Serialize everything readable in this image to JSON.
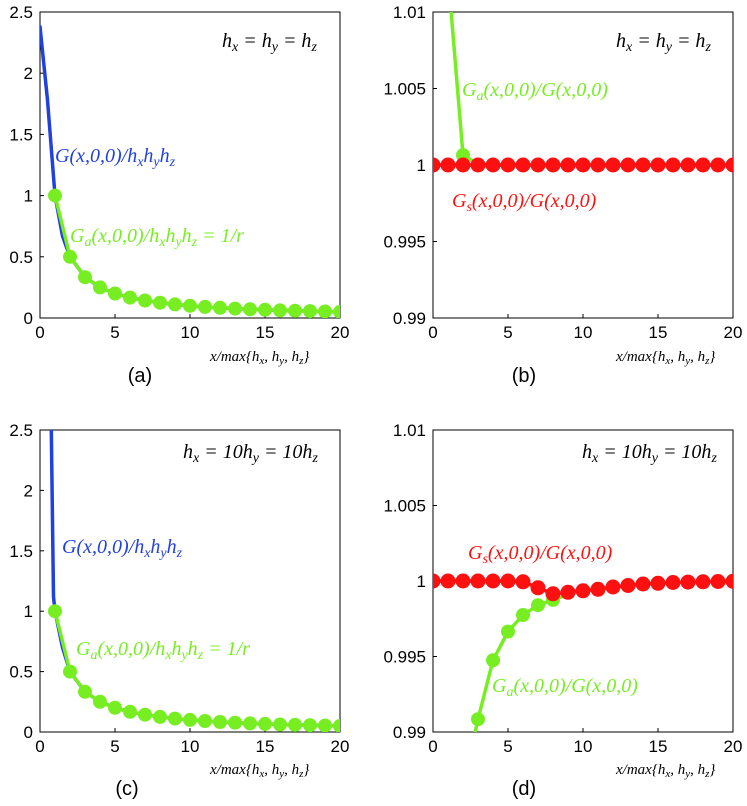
{
  "chart_data": [
    {
      "id": "a",
      "type": "line",
      "panel_label": "(a)",
      "xlabel": "x/max{hx, hy, hz}",
      "xlim": [
        0,
        20
      ],
      "ylim": [
        0,
        2.5
      ],
      "xticks": [
        0,
        5,
        10,
        15,
        20
      ],
      "yticks": [
        0,
        0.5,
        1,
        1.5,
        2,
        2.5
      ],
      "ytick_labels": [
        "0",
        "0.5",
        "1",
        "1.5",
        "2",
        "2.5"
      ],
      "condition": "hx = hy = hz",
      "series": [
        {
          "name": "G(x,0,0)/hxhyhz",
          "color": "#2040e0",
          "markers": false,
          "x": [
            0,
            0.5,
            1,
            1.5,
            2,
            3,
            4,
            5,
            6,
            7,
            8,
            9,
            10,
            11,
            12,
            13,
            14,
            15,
            16,
            17,
            18,
            19,
            20
          ],
          "y": [
            2.38,
            1.78,
            1.0,
            0.67,
            0.5,
            0.333,
            0.25,
            0.2,
            0.167,
            0.143,
            0.125,
            0.111,
            0.1,
            0.091,
            0.083,
            0.077,
            0.071,
            0.067,
            0.0625,
            0.059,
            0.056,
            0.053,
            0.05
          ]
        },
        {
          "name": "Ga(x,0,0)/hxhyhz = 1/r",
          "color": "#77ee22",
          "markers": true,
          "x": [
            1,
            2,
            3,
            4,
            5,
            6,
            7,
            8,
            9,
            10,
            11,
            12,
            13,
            14,
            15,
            16,
            17,
            18,
            19,
            20
          ],
          "y": [
            1.0,
            0.5,
            0.333,
            0.25,
            0.2,
            0.167,
            0.143,
            0.125,
            0.111,
            0.1,
            0.091,
            0.083,
            0.077,
            0.071,
            0.067,
            0.0625,
            0.059,
            0.056,
            0.053,
            0.05
          ]
        }
      ]
    },
    {
      "id": "b",
      "type": "line",
      "panel_label": "(b)",
      "xlabel": "x/max{hx, hy, hz}",
      "xlim": [
        0,
        20
      ],
      "ylim": [
        0.99,
        1.01
      ],
      "xticks": [
        0,
        5,
        10,
        15,
        20
      ],
      "yticks": [
        0.99,
        0.995,
        1,
        1.005,
        1.01
      ],
      "ytick_labels": [
        "0.99",
        "0.995",
        "1",
        "1.005",
        "1.01"
      ],
      "condition": "hx = hy = hz",
      "series": [
        {
          "name": "Ga(x,0,0)/G(x,0,0)",
          "color": "#77ee22",
          "markers": true,
          "x": [
            1.2,
            2,
            3,
            4,
            5
          ],
          "y": [
            1.0101,
            1.00065,
            1.00005,
            1.0,
            1.0
          ],
          "marker_indices": [
            1
          ]
        },
        {
          "name": "Gs(x,0,0)/G(x,0,0)",
          "color": "#ff1010",
          "markers": true,
          "x": [
            0,
            1,
            2,
            3,
            4,
            5,
            6,
            7,
            8,
            9,
            10,
            11,
            12,
            13,
            14,
            15,
            16,
            17,
            18,
            19,
            20
          ],
          "y": [
            1,
            1,
            1,
            1,
            1,
            1,
            1,
            1,
            1,
            1,
            1,
            1,
            1,
            1,
            1,
            1,
            1,
            1,
            1,
            1,
            1
          ]
        }
      ]
    },
    {
      "id": "c",
      "type": "line",
      "panel_label": "(c)",
      "xlabel": "x/max{hx, hy, hz}",
      "xlim": [
        0,
        20
      ],
      "ylim": [
        0,
        2.5
      ],
      "xticks": [
        0,
        5,
        10,
        15,
        20
      ],
      "yticks": [
        0,
        0.5,
        1,
        1.5,
        2,
        2.5
      ],
      "ytick_labels": [
        "0",
        "0.5",
        "1",
        "1.5",
        "2",
        "2.5"
      ],
      "condition": "hx = 10hy = 10hz",
      "series": [
        {
          "name": "G(x,0,0)/hxhyhz",
          "color": "#2040e0",
          "markers": false,
          "x": [
            0.75,
            0.9,
            1,
            1.5,
            2,
            3,
            4,
            5,
            6,
            7,
            8,
            9,
            10,
            11,
            12,
            13,
            14,
            15,
            16,
            17,
            18,
            19,
            20
          ],
          "y": [
            2.5,
            1.12,
            1.0,
            0.7,
            0.5,
            0.333,
            0.25,
            0.2,
            0.167,
            0.143,
            0.125,
            0.111,
            0.1,
            0.091,
            0.083,
            0.077,
            0.071,
            0.067,
            0.0625,
            0.059,
            0.056,
            0.053,
            0.05
          ]
        },
        {
          "name": "Ga(x,0,0)/hxhyhz = 1/r",
          "color": "#77ee22",
          "markers": true,
          "x": [
            1,
            2,
            3,
            4,
            5,
            6,
            7,
            8,
            9,
            10,
            11,
            12,
            13,
            14,
            15,
            16,
            17,
            18,
            19,
            20
          ],
          "y": [
            1.0,
            0.5,
            0.333,
            0.25,
            0.2,
            0.167,
            0.143,
            0.125,
            0.111,
            0.1,
            0.091,
            0.083,
            0.077,
            0.071,
            0.067,
            0.0625,
            0.059,
            0.056,
            0.053,
            0.05
          ]
        }
      ]
    },
    {
      "id": "d",
      "type": "line",
      "panel_label": "(d)",
      "xlabel": "x/max{hx, hy, hz}",
      "xlim": [
        0,
        20
      ],
      "ylim": [
        0.99,
        1.01
      ],
      "xticks": [
        0,
        5,
        10,
        15,
        20
      ],
      "yticks": [
        0.99,
        0.995,
        1,
        1.005,
        1.01
      ],
      "ytick_labels": [
        "0.99",
        "0.995",
        "1",
        "1.005",
        "1.01"
      ],
      "condition": "hx = 10hy = 10hz",
      "series": [
        {
          "name": "Ga(x,0,0)/G(x,0,0)",
          "color": "#77ee22",
          "markers": true,
          "x": [
            2.8,
            3,
            4,
            5,
            6,
            7,
            8,
            9
          ],
          "y": [
            0.98995,
            0.99085,
            0.99475,
            0.99665,
            0.99775,
            0.9984,
            0.99875,
            0.9991
          ],
          "marker_indices": [
            1,
            2,
            3,
            4,
            5,
            6
          ]
        },
        {
          "name": "Gs(x,0,0)/G(x,0,0)",
          "color": "#ff1010",
          "markers": true,
          "x": [
            0,
            1,
            2,
            3,
            4,
            5,
            6,
            7,
            8,
            9,
            10,
            11,
            12,
            13,
            14,
            15,
            16,
            17,
            18,
            19,
            20
          ],
          "y": [
            1.0,
            1.0,
            1.0,
            1.0,
            1.0,
            1.0,
            0.99995,
            0.99955,
            0.99915,
            0.99925,
            0.99935,
            0.99945,
            0.9996,
            0.9997,
            0.9998,
            0.99985,
            0.9999,
            0.99993,
            0.99995,
            0.99997,
            0.99998
          ]
        }
      ]
    }
  ]
}
